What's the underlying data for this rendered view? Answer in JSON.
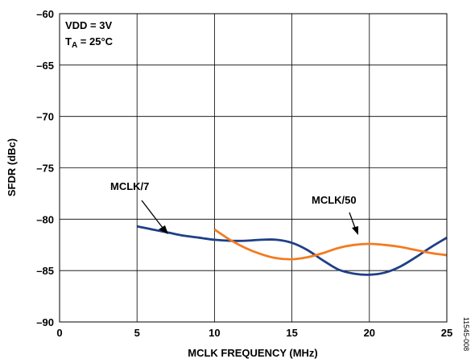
{
  "chart_data": {
    "type": "line",
    "title": "",
    "xlabel": "MCLK FREQUENCY (MHz)",
    "ylabel": "SFDR (dBc)",
    "xlim": [
      0,
      25
    ],
    "ylim": [
      -90,
      -60
    ],
    "x_ticks": [
      0,
      5,
      10,
      15,
      20,
      25
    ],
    "x_tick_labels": [
      "0",
      "5",
      "10",
      "15",
      "20",
      "25"
    ],
    "y_ticks": [
      -90,
      -85,
      -80,
      -75,
      -70,
      -65,
      -60
    ],
    "y_tick_labels": [
      "–90",
      "–85",
      "–80",
      "–75",
      "–70",
      "–65",
      "–60"
    ],
    "grid": true,
    "conditions": {
      "line1": "VDD = 3V",
      "line2_main": "T",
      "line2_sub": "A",
      "line2_rest": " = 25°C"
    },
    "series": [
      {
        "name": "MCLK/7",
        "color": "#1f3f87",
        "x": [
          5,
          6,
          7,
          8,
          9,
          10,
          11,
          12,
          13,
          14,
          15,
          16,
          17,
          18,
          19,
          20,
          21,
          22,
          23,
          24,
          25
        ],
        "y": [
          -80.7,
          -81.0,
          -81.3,
          -81.6,
          -81.8,
          -82.0,
          -82.1,
          -82.1,
          -82.0,
          -82.0,
          -82.3,
          -83.0,
          -84.0,
          -84.9,
          -85.3,
          -85.4,
          -85.2,
          -84.6,
          -83.7,
          -82.7,
          -81.8
        ]
      },
      {
        "name": "MCLK/50",
        "color": "#f47b20",
        "x": [
          10,
          11,
          12,
          13,
          14,
          15,
          16,
          17,
          18,
          19,
          20,
          21,
          22,
          23,
          24,
          25
        ],
        "y": [
          -81.0,
          -82.0,
          -82.8,
          -83.4,
          -83.8,
          -83.9,
          -83.7,
          -83.3,
          -82.8,
          -82.5,
          -82.4,
          -82.5,
          -82.7,
          -83.0,
          -83.3,
          -83.5
        ]
      }
    ],
    "annotations": [
      {
        "text": "MCLK/7",
        "points_to": [
          7.2,
          -81.4
        ]
      },
      {
        "text": "MCLK/50",
        "points_to": [
          20.3,
          -82.5
        ]
      }
    ],
    "figure_id": "11545-008"
  }
}
